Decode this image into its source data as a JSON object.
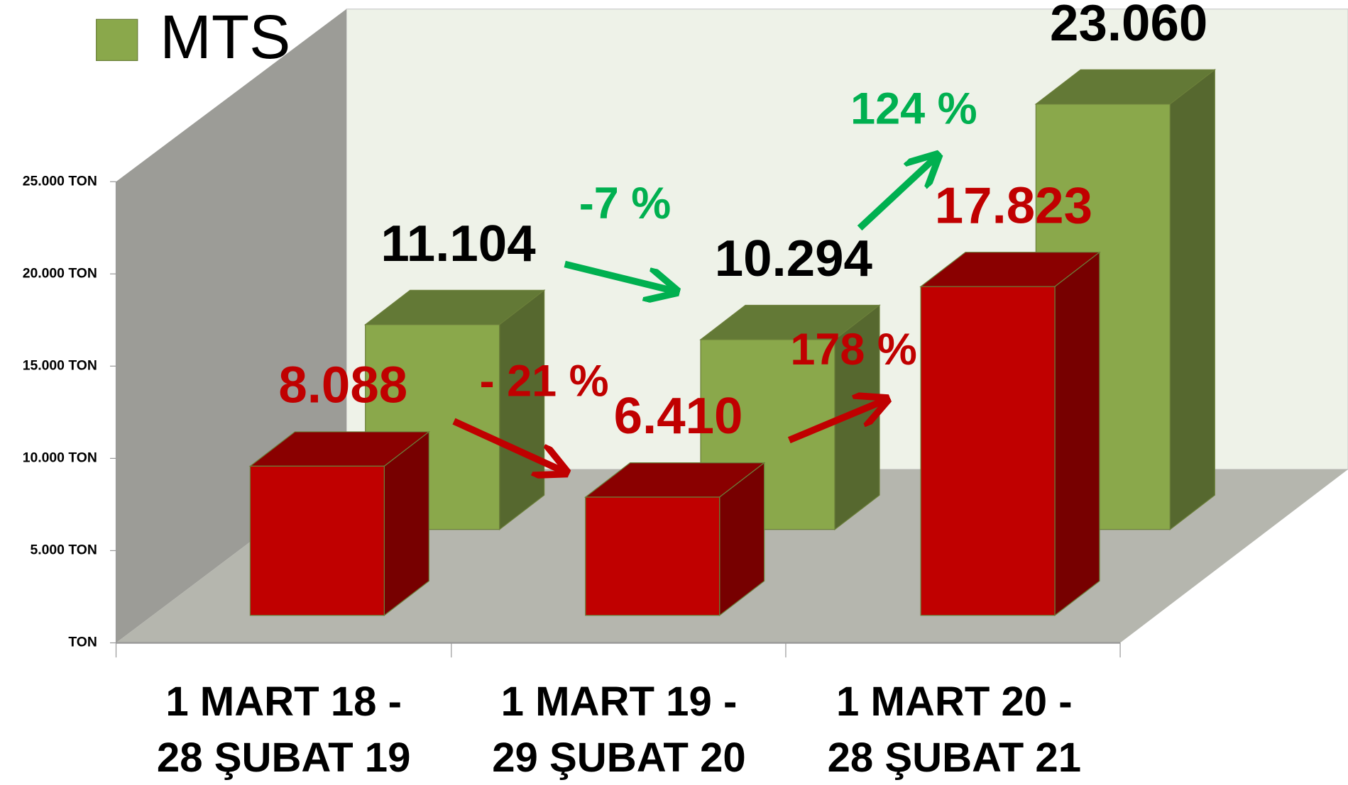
{
  "chart_data": {
    "type": "bar3d",
    "categories": [
      [
        "1 MART 18 -",
        "28 ŞUBAT 19"
      ],
      [
        "1 MART 19 -",
        "29 ŞUBAT 20"
      ],
      [
        "1 MART 20 -",
        "28 ŞUBAT 21"
      ]
    ],
    "series": [
      {
        "color": "#c00000",
        "values": [
          8088,
          6410,
          17823
        ],
        "value_labels": [
          "8.088",
          "6.410",
          "17.823"
        ]
      },
      {
        "name": "MTS",
        "color": "#8aa84b",
        "values": [
          11104,
          10294,
          23060
        ],
        "value_labels": [
          "11.104",
          "10.294",
          "23.060"
        ]
      }
    ],
    "ylim": [
      0,
      25000
    ],
    "yticks": [
      {
        "value": 0,
        "label": "TON"
      },
      {
        "value": 5000,
        "label": "5.000 TON"
      },
      {
        "value": 10000,
        "label": "10.000 TON"
      },
      {
        "value": 15000,
        "label": "15.000 TON"
      },
      {
        "value": 20000,
        "label": "20.000 TON"
      },
      {
        "value": 25000,
        "label": "25.000 TON"
      }
    ],
    "annotations": [
      {
        "text": "- 21 %",
        "color": "#c00000"
      },
      {
        "text": "178 %",
        "color": "#c00000"
      },
      {
        "text": "-7 %",
        "color": "#00b050"
      },
      {
        "text": "124 %",
        "color": "#00b050"
      }
    ],
    "legend": "top-left"
  }
}
